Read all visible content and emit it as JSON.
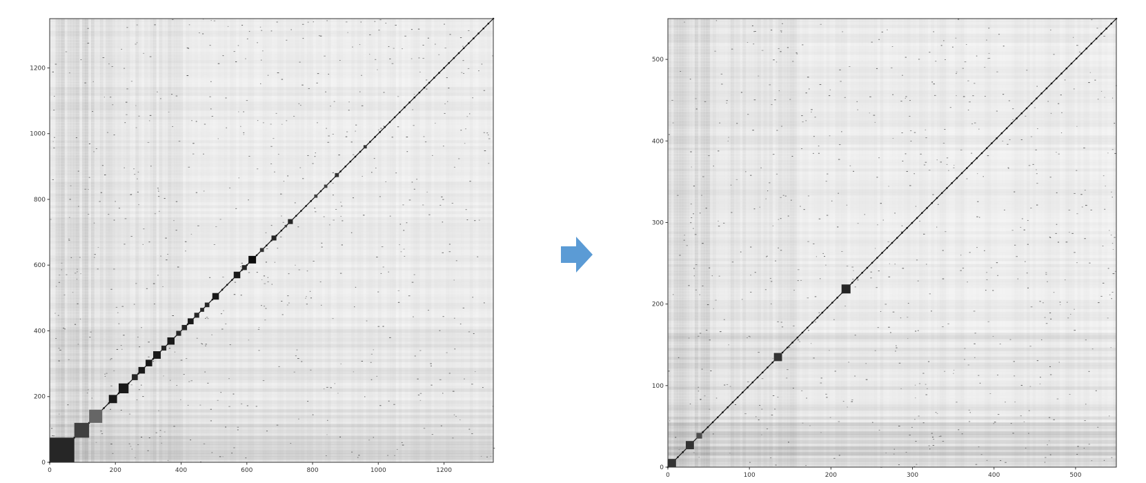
{
  "colors": {
    "background": "#ffffff",
    "frame": "#333333",
    "diagonal": "#111111",
    "arrow": "#5b9bd5"
  },
  "arrow_icon": "right-arrow-icon",
  "chart_data": [
    {
      "type": "heatmap",
      "title": "",
      "xlabel": "",
      "ylabel": "",
      "xlim": [
        0,
        1350
      ],
      "ylim": [
        0,
        1350
      ],
      "xticks": [
        "0",
        "200",
        "400",
        "600",
        "800",
        "1000",
        "1200"
      ],
      "yticks": [
        "0",
        "200",
        "400",
        "600",
        "800",
        "1000",
        "1200"
      ],
      "grid": false,
      "colormap": "grayscale (white = low, black = high)",
      "dominant_feature": "dark diagonal line from (0,0) to (1350,1350)",
      "diagonal_blocks": [
        {
          "start": 0,
          "end": 75,
          "darkness": 0.85
        },
        {
          "start": 75,
          "end": 120,
          "darkness": 0.75
        },
        {
          "start": 120,
          "end": 160,
          "darkness": 0.6
        },
        {
          "start": 180,
          "end": 205,
          "darkness": 0.9
        },
        {
          "start": 210,
          "end": 240,
          "darkness": 0.9
        },
        {
          "start": 250,
          "end": 268,
          "darkness": 0.85
        },
        {
          "start": 270,
          "end": 290,
          "darkness": 0.9
        },
        {
          "start": 292,
          "end": 312,
          "darkness": 0.9
        },
        {
          "start": 315,
          "end": 338,
          "darkness": 0.9
        },
        {
          "start": 340,
          "end": 355,
          "darkness": 0.85
        },
        {
          "start": 358,
          "end": 380,
          "darkness": 0.9
        },
        {
          "start": 385,
          "end": 400,
          "darkness": 0.85
        },
        {
          "start": 402,
          "end": 418,
          "darkness": 0.85
        },
        {
          "start": 420,
          "end": 438,
          "darkness": 0.9
        },
        {
          "start": 440,
          "end": 455,
          "darkness": 0.85
        },
        {
          "start": 458,
          "end": 470,
          "darkness": 0.85
        },
        {
          "start": 472,
          "end": 486,
          "darkness": 0.85
        },
        {
          "start": 495,
          "end": 515,
          "darkness": 0.9
        },
        {
          "start": 560,
          "end": 580,
          "darkness": 0.9
        },
        {
          "start": 585,
          "end": 600,
          "darkness": 0.85
        },
        {
          "start": 605,
          "end": 628,
          "darkness": 0.95
        },
        {
          "start": 640,
          "end": 652,
          "darkness": 0.8
        },
        {
          "start": 675,
          "end": 690,
          "darkness": 0.85
        },
        {
          "start": 715,
          "end": 722,
          "darkness": 0.75
        },
        {
          "start": 725,
          "end": 740,
          "darkness": 0.85
        },
        {
          "start": 805,
          "end": 815,
          "darkness": 0.75
        },
        {
          "start": 835,
          "end": 845,
          "darkness": 0.75
        },
        {
          "start": 868,
          "end": 880,
          "darkness": 0.8
        },
        {
          "start": 955,
          "end": 965,
          "darkness": 0.8
        }
      ]
    },
    {
      "type": "heatmap",
      "title": "",
      "xlabel": "",
      "ylabel": "",
      "xlim": [
        0,
        550
      ],
      "ylim": [
        0,
        550
      ],
      "xticks": [
        "0",
        "100",
        "200",
        "300",
        "400",
        "500"
      ],
      "yticks": [
        "0",
        "100",
        "200",
        "300",
        "400",
        "500"
      ],
      "grid": false,
      "colormap": "grayscale (white = low, black = high)",
      "dominant_feature": "thin dark diagonal line from (0,0) to (550,550)",
      "diagonal_blocks": [
        {
          "start": 0,
          "end": 10,
          "darkness": 0.8
        },
        {
          "start": 22,
          "end": 32,
          "darkness": 0.8
        },
        {
          "start": 35,
          "end": 42,
          "darkness": 0.7
        },
        {
          "start": 130,
          "end": 140,
          "darkness": 0.8
        },
        {
          "start": 213,
          "end": 224,
          "darkness": 0.85
        }
      ]
    }
  ]
}
